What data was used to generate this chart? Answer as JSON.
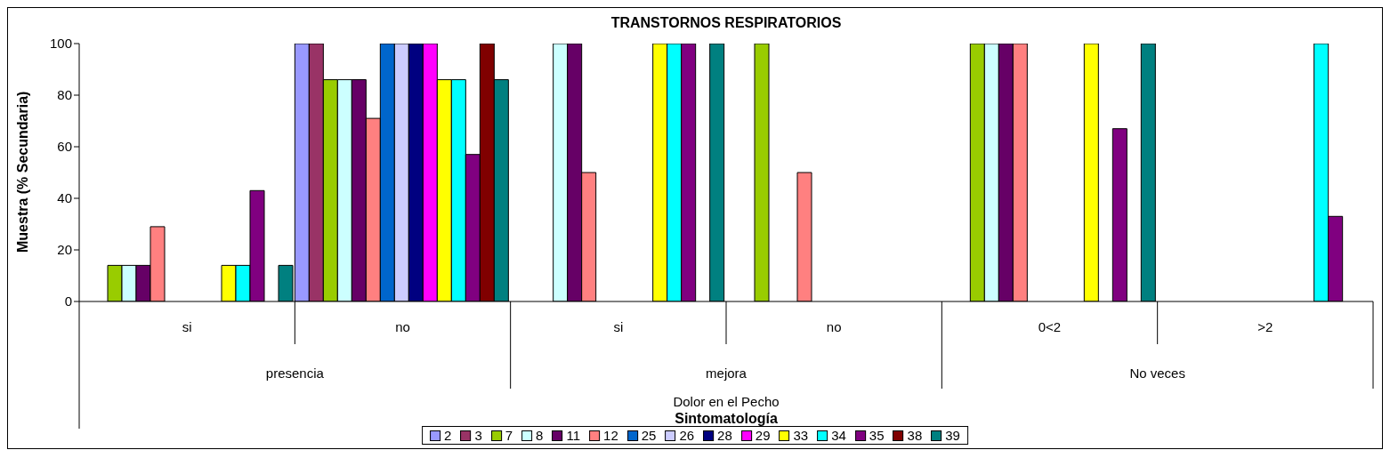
{
  "chart_data": {
    "type": "bar",
    "title": "TRANSTORNOS RESPIRATORIOS",
    "ylabel": "Muestra (% Secundaria)",
    "categories": [
      "si",
      "no",
      "si",
      "no",
      "0<2",
      ">2"
    ],
    "annotations": [
      "presencia",
      "mejora",
      "No veces",
      "Dolor en el Pecho",
      "Sintomatología"
    ],
    "ylim": [
      0,
      100
    ],
    "yticks": [
      0,
      20,
      40,
      60,
      80,
      100
    ],
    "legend": "bottom",
    "series": [
      {
        "name": "2",
        "color": "#9999ff",
        "values": [
          null,
          100,
          null,
          null,
          null,
          null
        ]
      },
      {
        "name": "3",
        "color": "#993366",
        "values": [
          null,
          100,
          null,
          null,
          null,
          null
        ]
      },
      {
        "name": "7",
        "color": "#99cc00",
        "values": [
          14,
          86,
          null,
          100,
          100,
          null
        ]
      },
      {
        "name": "8",
        "color": "#ccffff",
        "values": [
          14,
          86,
          100,
          null,
          100,
          null
        ]
      },
      {
        "name": "11",
        "color": "#660066",
        "values": [
          14,
          86,
          100,
          null,
          100,
          null
        ]
      },
      {
        "name": "12",
        "color": "#ff8080",
        "values": [
          29,
          71,
          50,
          50,
          100,
          null
        ]
      },
      {
        "name": "25",
        "color": "#0066cc",
        "values": [
          null,
          100,
          null,
          null,
          null,
          null
        ]
      },
      {
        "name": "26",
        "color": "#ccccff",
        "values": [
          null,
          100,
          null,
          null,
          null,
          null
        ]
      },
      {
        "name": "28",
        "color": "#000080",
        "values": [
          null,
          100,
          null,
          null,
          null,
          null
        ]
      },
      {
        "name": "29",
        "color": "#ff00ff",
        "values": [
          null,
          100,
          null,
          null,
          null,
          null
        ]
      },
      {
        "name": "33",
        "color": "#ffff00",
        "values": [
          14,
          86,
          100,
          null,
          100,
          null
        ]
      },
      {
        "name": "34",
        "color": "#00ffff",
        "values": [
          14,
          86,
          100,
          null,
          null,
          100
        ]
      },
      {
        "name": "35",
        "color": "#800080",
        "values": [
          43,
          57,
          100,
          null,
          67,
          33
        ]
      },
      {
        "name": "38",
        "color": "#800000",
        "values": [
          null,
          100,
          null,
          null,
          null,
          null
        ]
      },
      {
        "name": "39",
        "color": "#008080",
        "values": [
          14,
          86,
          100,
          null,
          100,
          null
        ]
      }
    ]
  }
}
